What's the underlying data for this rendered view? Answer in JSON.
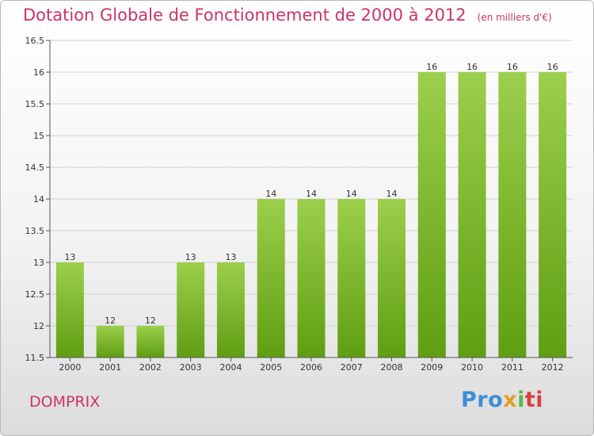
{
  "title": "Dotation Globale de Fonctionnement de 2000 à 2012",
  "subtitle": "(en milliers d'€)",
  "commune": "DOMPRIX",
  "brand": {
    "p1": "Pro",
    "p2": "x",
    "p3": "i",
    "p4": "ti"
  },
  "colors": {
    "bar_top": "#9ccf4c",
    "bar_bottom": "#5f9e12",
    "title": "#cc3366"
  },
  "chart_data": {
    "type": "bar",
    "title": "Dotation Globale de Fonctionnement de 2000 à 2012",
    "subtitle": "(en milliers d'€)",
    "xlabel": "",
    "ylabel": "",
    "categories": [
      "2000",
      "2001",
      "2002",
      "2003",
      "2004",
      "2005",
      "2006",
      "2007",
      "2008",
      "2009",
      "2010",
      "2011",
      "2012"
    ],
    "values": [
      13,
      12,
      12,
      13,
      13,
      14,
      14,
      14,
      14,
      16,
      16,
      16,
      16
    ],
    "data_labels": [
      "13",
      "12",
      "12",
      "13",
      "13",
      "14",
      "14",
      "14",
      "14",
      "16",
      "16",
      "16",
      "16"
    ],
    "ylim": [
      11.5,
      16.5
    ],
    "yticks": [
      11.5,
      12,
      12.5,
      13,
      13.5,
      14,
      14.5,
      15,
      15.5,
      16,
      16.5
    ],
    "ytick_labels": [
      "11.5",
      "12",
      "12.5",
      "13",
      "13.5",
      "14",
      "14.5",
      "15",
      "15.5",
      "16",
      "16.5"
    ],
    "grid": true,
    "legend": "none"
  }
}
